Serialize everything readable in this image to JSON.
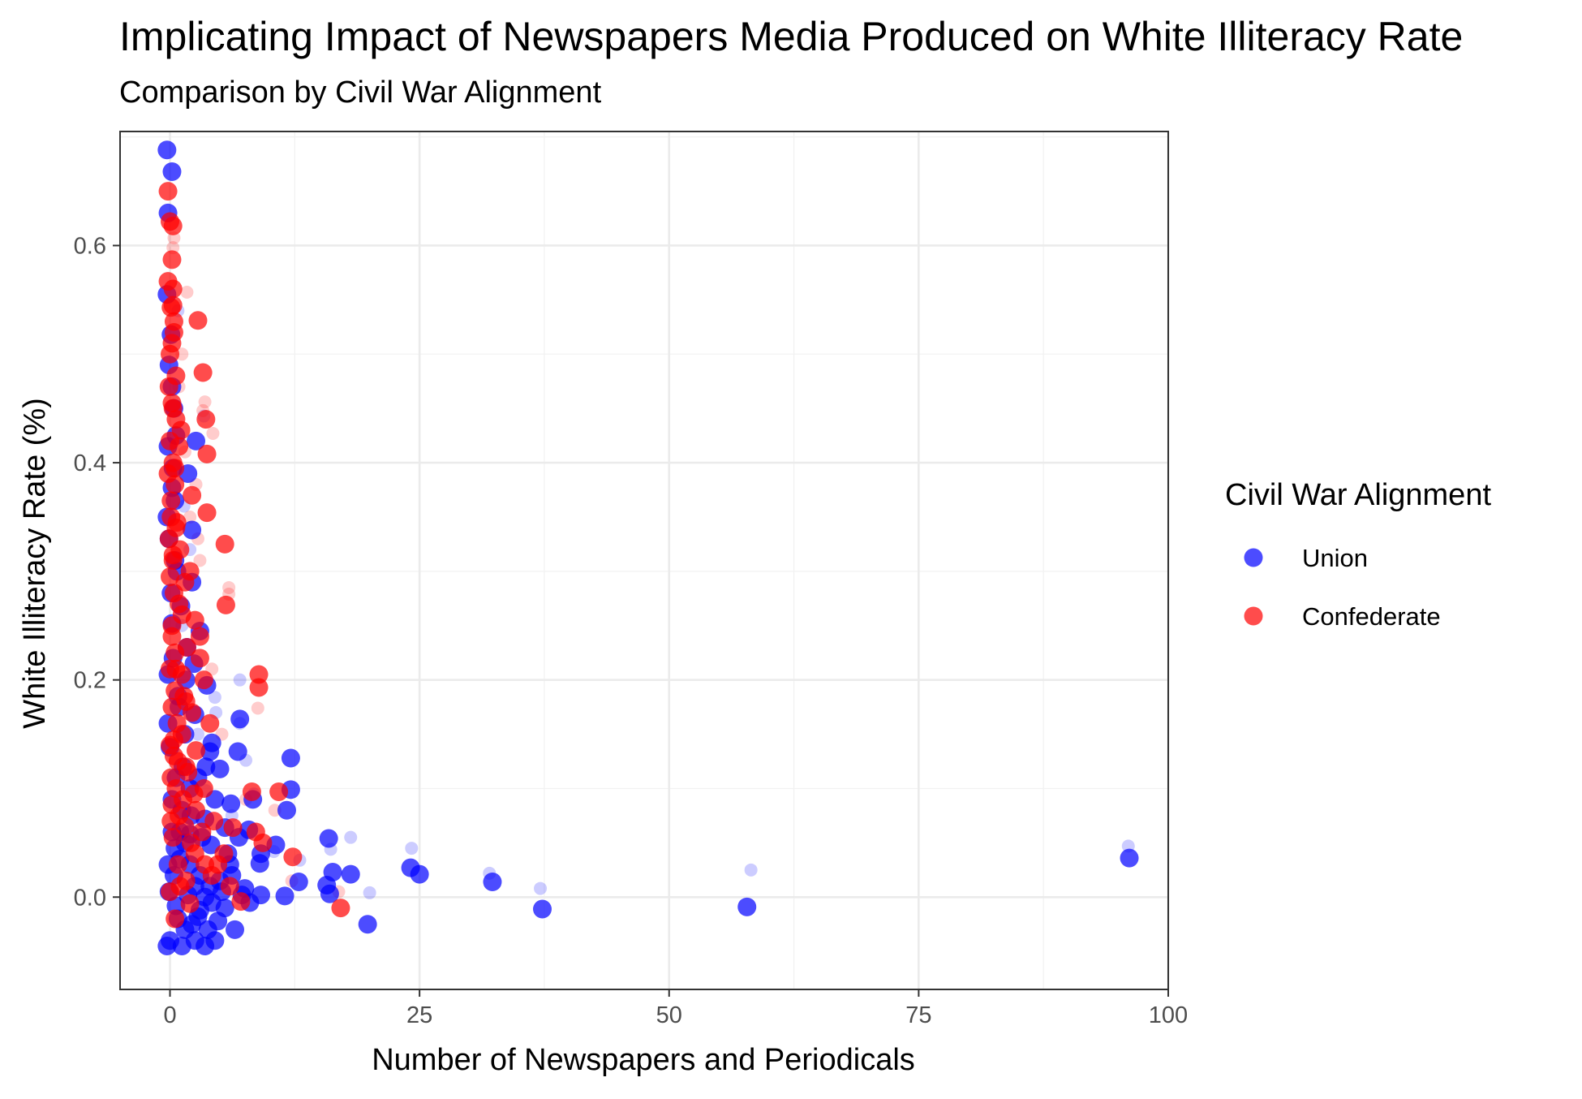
{
  "chart_data": {
    "type": "scatter",
    "title": "Implicating Impact of Newspapers Media Produced on White Illiteracy Rate",
    "subtitle": "Comparison by Civil War Alignment",
    "xlabel": "Number of Newspapers and Periodicals",
    "ylabel": "White Illiteracy Rate (%)",
    "xlim": [
      -5,
      100
    ],
    "ylim": [
      -0.085,
      0.705
    ],
    "x_ticks": [
      0,
      25,
      50,
      75,
      100
    ],
    "x_tick_labels": [
      "0",
      "25",
      "50",
      "75",
      "100"
    ],
    "y_ticks": [
      0.0,
      0.2,
      0.4,
      0.6
    ],
    "y_tick_labels": [
      "0.0",
      "0.2",
      "0.4",
      "0.6"
    ],
    "grid": true,
    "legend": {
      "title": "Civil War Alignment",
      "position": "right"
    },
    "series": [
      {
        "name": "Union",
        "color": "#0000FF",
        "points": [
          [
            -0.3,
            0.688
          ],
          [
            0.2,
            0.668
          ],
          [
            -0.2,
            0.63
          ],
          [
            -0.3,
            0.555
          ],
          [
            0.1,
            0.518
          ],
          [
            -0.1,
            0.49
          ],
          [
            0.3,
            0.395
          ],
          [
            0.2,
            0.377
          ],
          [
            1.8,
            0.39
          ],
          [
            2.6,
            0.42
          ],
          [
            2.2,
            0.338
          ],
          [
            0.5,
            0.365
          ],
          [
            1.1,
            0.268
          ],
          [
            2.2,
            0.29
          ],
          [
            3.0,
            0.245
          ],
          [
            0.2,
            0.252
          ],
          [
            1.7,
            0.23
          ],
          [
            3.7,
            0.195
          ],
          [
            -0.2,
            0.205
          ],
          [
            0.8,
            0.185
          ],
          [
            2.5,
            0.168
          ],
          [
            7.0,
            0.164
          ],
          [
            4.2,
            0.142
          ],
          [
            6.8,
            0.134
          ],
          [
            4.0,
            0.134
          ],
          [
            1.5,
            0.15
          ],
          [
            5.0,
            0.118
          ],
          [
            0.0,
            0.138
          ],
          [
            3.6,
            0.12
          ],
          [
            2.8,
            0.11
          ],
          [
            12.1,
            0.128
          ],
          [
            8.3,
            0.09
          ],
          [
            6.1,
            0.086
          ],
          [
            4.5,
            0.09
          ],
          [
            2.0,
            0.1
          ],
          [
            12.1,
            0.099
          ],
          [
            11.7,
            0.08
          ],
          [
            7.9,
            0.062
          ],
          [
            6.9,
            0.055
          ],
          [
            5.5,
            0.064
          ],
          [
            3.5,
            0.072
          ],
          [
            1.2,
            0.08
          ],
          [
            9.1,
            0.04
          ],
          [
            10.6,
            0.048
          ],
          [
            9.0,
            0.031
          ],
          [
            15.9,
            0.054
          ],
          [
            16.3,
            0.023
          ],
          [
            24.1,
            0.027
          ],
          [
            25.0,
            0.021
          ],
          [
            32.3,
            0.014
          ],
          [
            18.1,
            0.021
          ],
          [
            96.1,
            0.036
          ],
          [
            12.9,
            0.014
          ],
          [
            15.7,
            0.011
          ],
          [
            16.0,
            0.003
          ],
          [
            11.5,
            0.001
          ],
          [
            9.1,
            0.002
          ],
          [
            19.8,
            -0.025
          ],
          [
            37.3,
            -0.011
          ],
          [
            57.8,
            -0.009
          ],
          [
            6.0,
            0.03
          ],
          [
            5.0,
            0.015
          ],
          [
            4.0,
            0.01
          ],
          [
            3.0,
            0.02
          ],
          [
            2.0,
            0.03
          ],
          [
            1.0,
            0.035
          ],
          [
            0.5,
            0.045
          ],
          [
            -0.2,
            0.03
          ],
          [
            0.2,
            0.06
          ],
          [
            1.5,
            0.05
          ],
          [
            2.5,
            0.01
          ],
          [
            3.5,
            0.0
          ],
          [
            5.5,
            -0.01
          ],
          [
            6.5,
            -0.03
          ],
          [
            4.5,
            -0.04
          ],
          [
            3.5,
            -0.045
          ],
          [
            2.5,
            -0.04
          ],
          [
            1.5,
            -0.03
          ],
          [
            0.8,
            -0.02
          ],
          [
            0.0,
            -0.04
          ],
          [
            -0.3,
            -0.045
          ],
          [
            1.2,
            -0.045
          ],
          [
            2.2,
            -0.025
          ],
          [
            3.0,
            -0.012
          ],
          [
            4.2,
            -0.005
          ],
          [
            5.2,
            0.005
          ],
          [
            7.2,
            0.002
          ],
          [
            8.0,
            -0.005
          ],
          [
            0.4,
            0.02
          ],
          [
            -0.1,
            0.005
          ],
          [
            0.6,
            -0.008
          ],
          [
            1.8,
            0.002
          ],
          [
            2.8,
            -0.018
          ],
          [
            3.8,
            -0.03
          ],
          [
            4.8,
            -0.022
          ],
          [
            0.2,
            0.09
          ],
          [
            0.6,
            0.11
          ],
          [
            -0.2,
            0.16
          ],
          [
            0.3,
            0.22
          ],
          [
            0.7,
            0.3
          ],
          [
            -0.1,
            0.33
          ],
          [
            0.4,
            0.45
          ],
          [
            0.2,
            0.47
          ],
          [
            -0.2,
            0.415
          ],
          [
            0.6,
            0.425
          ],
          [
            1.3,
            0.12
          ],
          [
            2.1,
            0.075
          ],
          [
            3.2,
            0.055
          ],
          [
            4.1,
            0.048
          ],
          [
            5.8,
            0.04
          ],
          [
            6.2,
            0.02
          ],
          [
            7.5,
            0.008
          ],
          [
            0.9,
            0.175
          ],
          [
            1.6,
            0.2
          ],
          [
            2.4,
            0.215
          ],
          [
            0.1,
            0.28
          ],
          [
            -0.3,
            0.35
          ],
          [
            0.5,
            0.31
          ],
          [
            1.0,
            0.06
          ],
          [
            2.0,
            0.058
          ]
        ],
        "faint_points": [
          [
            3.4,
            0.443
          ],
          [
            7.0,
            0.2
          ],
          [
            7.6,
            0.126
          ],
          [
            4.5,
            0.184
          ],
          [
            18.1,
            0.055
          ],
          [
            24.2,
            0.045
          ],
          [
            37.1,
            0.008
          ],
          [
            58.2,
            0.025
          ],
          [
            96.0,
            0.047
          ],
          [
            32.0,
            0.022
          ],
          [
            20.0,
            0.004
          ],
          [
            16.1,
            0.044
          ],
          [
            13.0,
            0.034
          ],
          [
            7.0,
            0.16
          ],
          [
            4.6,
            0.17
          ],
          [
            1.4,
            0.36
          ],
          [
            2.0,
            0.32
          ],
          [
            0.8,
            0.54
          ],
          [
            6.2,
            0.075
          ],
          [
            8.4,
            0.095
          ],
          [
            10.4,
            0.042
          ],
          [
            3.6,
            0.098
          ],
          [
            1.2,
            0.25
          ],
          [
            2.8,
            0.15
          ]
        ]
      },
      {
        "name": "Confederate",
        "color": "#FF0000",
        "points": [
          [
            -0.2,
            0.65
          ],
          [
            0.0,
            0.622
          ],
          [
            0.3,
            0.618
          ],
          [
            0.2,
            0.587
          ],
          [
            -0.2,
            0.567
          ],
          [
            0.3,
            0.56
          ],
          [
            0.1,
            0.543
          ],
          [
            2.8,
            0.531
          ],
          [
            0.4,
            0.52
          ],
          [
            0.0,
            0.5
          ],
          [
            3.3,
            0.483
          ],
          [
            -0.1,
            0.47
          ],
          [
            0.2,
            0.455
          ],
          [
            0.6,
            0.44
          ],
          [
            3.6,
            0.44
          ],
          [
            1.1,
            0.43
          ],
          [
            0.0,
            0.42
          ],
          [
            3.7,
            0.408
          ],
          [
            0.3,
            0.4
          ],
          [
            -0.2,
            0.39
          ],
          [
            0.5,
            0.38
          ],
          [
            2.2,
            0.37
          ],
          [
            3.7,
            0.354
          ],
          [
            0.1,
            0.35
          ],
          [
            0.6,
            0.34
          ],
          [
            -0.1,
            0.33
          ],
          [
            1.0,
            0.32
          ],
          [
            0.3,
            0.31
          ],
          [
            2.0,
            0.3
          ],
          [
            0.0,
            0.295
          ],
          [
            1.5,
            0.29
          ],
          [
            5.5,
            0.325
          ],
          [
            5.6,
            0.269
          ],
          [
            0.4,
            0.28
          ],
          [
            1.2,
            0.26
          ],
          [
            2.5,
            0.255
          ],
          [
            0.2,
            0.25
          ],
          [
            3.0,
            0.24
          ],
          [
            1.7,
            0.23
          ],
          [
            0.5,
            0.225
          ],
          [
            3.0,
            0.22
          ],
          [
            0.0,
            0.21
          ],
          [
            1.2,
            0.205
          ],
          [
            8.9,
            0.205
          ],
          [
            8.9,
            0.193
          ],
          [
            3.4,
            0.2
          ],
          [
            0.5,
            0.19
          ],
          [
            1.6,
            0.18
          ],
          [
            0.2,
            0.175
          ],
          [
            2.2,
            0.17
          ],
          [
            4.0,
            0.16
          ],
          [
            0.7,
            0.16
          ],
          [
            1.2,
            0.15
          ],
          [
            0.0,
            0.14
          ],
          [
            2.6,
            0.135
          ],
          [
            0.4,
            0.13
          ],
          [
            1.6,
            0.12
          ],
          [
            0.1,
            0.11
          ],
          [
            3.4,
            0.1
          ],
          [
            0.6,
            0.1
          ],
          [
            8.2,
            0.097
          ],
          [
            10.9,
            0.097
          ],
          [
            1.3,
            0.09
          ],
          [
            0.2,
            0.085
          ],
          [
            2.6,
            0.08
          ],
          [
            0.9,
            0.075
          ],
          [
            4.4,
            0.07
          ],
          [
            6.3,
            0.064
          ],
          [
            1.5,
            0.065
          ],
          [
            8.6,
            0.06
          ],
          [
            0.3,
            0.055
          ],
          [
            2.1,
            0.05
          ],
          [
            9.3,
            0.05
          ],
          [
            5.4,
            0.04
          ],
          [
            12.3,
            0.037
          ],
          [
            3.5,
            0.03
          ],
          [
            0.8,
            0.03
          ],
          [
            4.2,
            0.02
          ],
          [
            1.6,
            0.015
          ],
          [
            7.1,
            -0.004
          ],
          [
            17.1,
            -0.01
          ],
          [
            2.0,
            -0.006
          ],
          [
            0.5,
            -0.02
          ],
          [
            0.0,
            0.005
          ],
          [
            1.0,
            0.01
          ],
          [
            2.5,
            0.04
          ],
          [
            0.1,
            0.07
          ],
          [
            0.8,
            0.125
          ],
          [
            0.4,
            0.145
          ],
          [
            1.4,
            0.185
          ],
          [
            0.6,
            0.21
          ],
          [
            0.2,
            0.24
          ],
          [
            0.9,
            0.27
          ],
          [
            0.3,
            0.315
          ],
          [
            0.7,
            0.345
          ],
          [
            0.1,
            0.365
          ],
          [
            0.5,
            0.395
          ],
          [
            0.9,
            0.415
          ],
          [
            0.3,
            0.45
          ],
          [
            0.6,
            0.48
          ],
          [
            0.2,
            0.51
          ],
          [
            0.4,
            0.53
          ],
          [
            0.3,
            0.545
          ],
          [
            1.8,
            0.115
          ],
          [
            2.4,
            0.095
          ],
          [
            3.2,
            0.06
          ],
          [
            4.8,
            0.03
          ],
          [
            6.0,
            0.01
          ]
        ],
        "faint_points": [
          [
            0.4,
            0.607
          ],
          [
            0.3,
            0.598
          ],
          [
            1.7,
            0.557
          ],
          [
            3.5,
            0.456
          ],
          [
            3.3,
            0.448
          ],
          [
            4.3,
            0.427
          ],
          [
            5.9,
            0.285
          ],
          [
            5.9,
            0.279
          ],
          [
            8.8,
            0.174
          ],
          [
            10.5,
            0.08
          ],
          [
            2.6,
            0.38
          ],
          [
            1.2,
            0.5
          ],
          [
            0.9,
            0.47
          ],
          [
            2.0,
            0.35
          ],
          [
            3.0,
            0.31
          ],
          [
            4.2,
            0.21
          ],
          [
            5.2,
            0.15
          ],
          [
            7.6,
            0.09
          ],
          [
            12.2,
            0.015
          ],
          [
            16.9,
            0.005
          ],
          [
            1.5,
            0.41
          ],
          [
            2.8,
            0.33
          ]
        ]
      }
    ]
  }
}
